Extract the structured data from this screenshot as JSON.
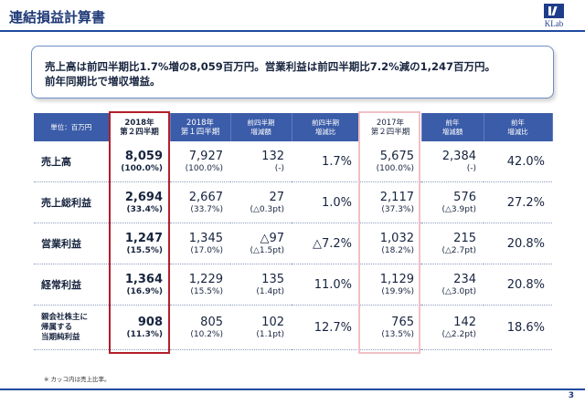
{
  "header": {
    "title": "連結損益計算書",
    "logo_text": "KLab"
  },
  "summary": {
    "line1": "売上高は前四半期比1.7%増の8,059百万円。営業利益は前四半期比7.2%減の1,247百万円。",
    "line2": "前年同期比で増収増益。"
  },
  "table": {
    "unit_label": "単位：百万円",
    "columns": [
      {
        "line1": "2018年",
        "line2": "第２四半期"
      },
      {
        "line1": "2018年",
        "line2": "第１四半期"
      },
      {
        "line1": "前四半期",
        "line2": "増減額"
      },
      {
        "line1": "前四半期",
        "line2": "増減比"
      },
      {
        "line1": "2017年",
        "line2": "第２四半期"
      },
      {
        "line1": "前年",
        "line2": "増減額"
      },
      {
        "line1": "前年",
        "line2": "増減比"
      }
    ],
    "rows": [
      {
        "label": "売上高",
        "q2_2018": {
          "value": "8,059",
          "sub": "(100.0%)"
        },
        "q1_2018": {
          "value": "7,927",
          "sub": "(100.0%)"
        },
        "qoq_amount": {
          "value": "132",
          "sub": "(-)"
        },
        "qoq_ratio": "1.7%",
        "q2_2017": {
          "value": "5,675",
          "sub": "(100.0%)"
        },
        "yoy_amount": {
          "value": "2,384",
          "sub": "(-)"
        },
        "yoy_ratio": "42.0%"
      },
      {
        "label": "売上総利益",
        "q2_2018": {
          "value": "2,694",
          "sub": "(33.4%)"
        },
        "q1_2018": {
          "value": "2,667",
          "sub": "(33.7%)"
        },
        "qoq_amount": {
          "value": "27",
          "sub": "(△0.3pt)"
        },
        "qoq_ratio": "1.0%",
        "q2_2017": {
          "value": "2,117",
          "sub": "(37.3%)"
        },
        "yoy_amount": {
          "value": "576",
          "sub": "(△3.9pt)"
        },
        "yoy_ratio": "27.2%"
      },
      {
        "label": "営業利益",
        "q2_2018": {
          "value": "1,247",
          "sub": "(15.5%)"
        },
        "q1_2018": {
          "value": "1,345",
          "sub": "(17.0%)"
        },
        "qoq_amount": {
          "value": "△97",
          "sub": "(△1.5pt)"
        },
        "qoq_ratio": "△7.2%",
        "q2_2017": {
          "value": "1,032",
          "sub": "(18.2%)"
        },
        "yoy_amount": {
          "value": "215",
          "sub": "(△2.7pt)"
        },
        "yoy_ratio": "20.8%"
      },
      {
        "label": "経常利益",
        "q2_2018": {
          "value": "1,364",
          "sub": "(16.9%)"
        },
        "q1_2018": {
          "value": "1,229",
          "sub": "(15.5%)"
        },
        "qoq_amount": {
          "value": "135",
          "sub": "(1.4pt)"
        },
        "qoq_ratio": "11.0%",
        "q2_2017": {
          "value": "1,129",
          "sub": "(19.9%)"
        },
        "yoy_amount": {
          "value": "234",
          "sub": "(△3.0pt)"
        },
        "yoy_ratio": "20.8%"
      },
      {
        "label_lines": [
          "親会社株主に",
          "帰属する",
          "当期純利益"
        ],
        "q2_2018": {
          "value": "908",
          "sub": "(11.3%)"
        },
        "q1_2018": {
          "value": "805",
          "sub": "(10.2%)"
        },
        "qoq_amount": {
          "value": "102",
          "sub": "(1.1pt)"
        },
        "qoq_ratio": "12.7%",
        "q2_2017": {
          "value": "765",
          "sub": "(13.5%)"
        },
        "yoy_amount": {
          "value": "142",
          "sub": "(△2.2pt)"
        },
        "yoy_ratio": "18.6%"
      }
    ]
  },
  "footnote": "※ カッコ内は売上比率。",
  "page_number": "3",
  "colors": {
    "header_blue": "#3b5ca8",
    "highlight_red": "#b41e2a",
    "title_blue": "#1f3a78"
  }
}
